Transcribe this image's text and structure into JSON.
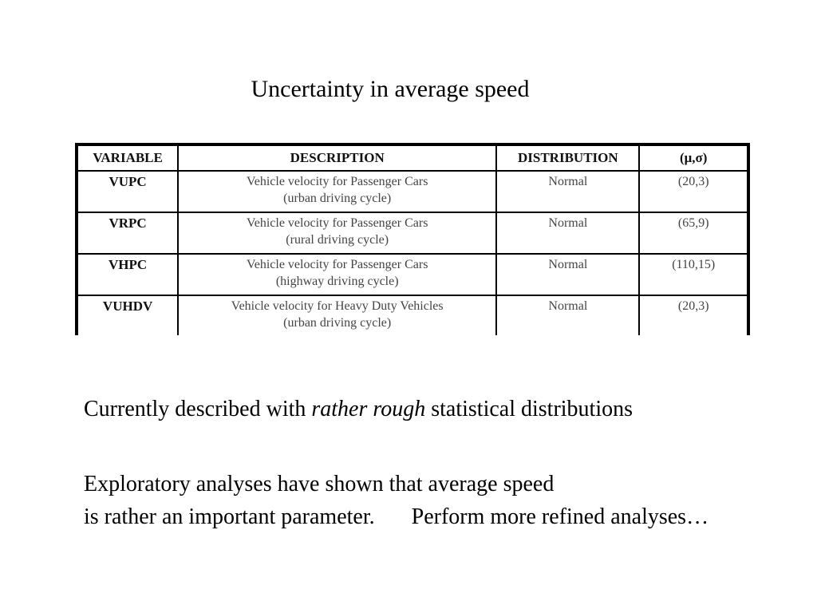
{
  "title": "Uncertainty in average speed",
  "table": {
    "headers": [
      "VARIABLE",
      "DESCRIPTION",
      "DISTRIBUTION",
      "(μ,σ)"
    ],
    "rows": [
      {
        "variable": "VUPC",
        "description_1": "Vehicle velocity for Passenger Cars",
        "description_2": "(urban driving cycle)",
        "distribution": "Normal",
        "params": "(20,3)"
      },
      {
        "variable": "VRPC",
        "description_1": "Vehicle velocity for Passenger Cars",
        "description_2": "(rural driving cycle)",
        "distribution": "Normal",
        "params": "(65,9)"
      },
      {
        "variable": "VHPC",
        "description_1": "Vehicle velocity for Passenger Cars",
        "description_2": "(highway driving cycle)",
        "distribution": "Normal",
        "params": "(110,15)"
      },
      {
        "variable": "VUHDV",
        "description_1": "Vehicle velocity for Heavy Duty Vehicles",
        "description_2": "(urban driving cycle)",
        "distribution": "Normal",
        "params": "(20,3)"
      }
    ]
  },
  "statement": {
    "before": "Currently described with ",
    "emphasis": "rather rough",
    "after": " statistical distributions"
  },
  "conclusion": {
    "line1": "Exploratory analyses have shown that average speed",
    "line2": "is rather an important parameter.",
    "action": "Perform more refined analyses…"
  }
}
